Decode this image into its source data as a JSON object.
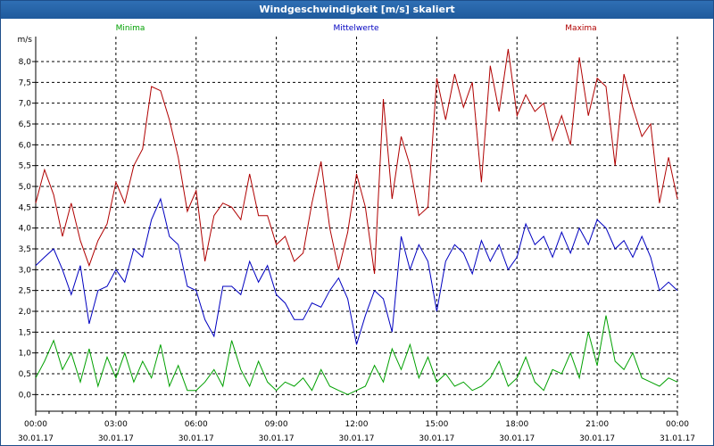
{
  "window": {
    "title": "Windgeschwindigkeit [m/s] skaliert"
  },
  "chart_data": {
    "type": "line",
    "title": "Windgeschwindigkeit [m/s] skaliert",
    "ylabel": "m/s",
    "xlabel": "",
    "ylim": [
      -0.4,
      8.6
    ],
    "xlim": [
      0,
      24
    ],
    "grid": true,
    "y_ticks": [
      "0,0",
      "0,5",
      "1,0",
      "1,5",
      "2,0",
      "2,5",
      "3,0",
      "3,5",
      "4,0",
      "4,5",
      "5,0",
      "5,5",
      "6,0",
      "6,5",
      "7,0",
      "7,5",
      "8,0"
    ],
    "x_ticks": [
      {
        "time": "00:00",
        "date": "30.01.17"
      },
      {
        "time": "03:00",
        "date": "30.01.17"
      },
      {
        "time": "06:00",
        "date": "30.01.17"
      },
      {
        "time": "09:00",
        "date": "30.01.17"
      },
      {
        "time": "12:00",
        "date": "30.01.17"
      },
      {
        "time": "15:00",
        "date": "30.01.17"
      },
      {
        "time": "18:00",
        "date": "30.01.17"
      },
      {
        "time": "21:00",
        "date": "30.01.17"
      },
      {
        "time": "00:00",
        "date": "31.01.17"
      }
    ],
    "legend": [
      "Minima",
      "Mittelwerte",
      "Maxima"
    ],
    "series": [
      {
        "name": "Minima",
        "color": "#00a000",
        "x": [
          0,
          0.33,
          0.67,
          1,
          1.33,
          1.67,
          2,
          2.33,
          2.67,
          3,
          3.33,
          3.67,
          4,
          4.33,
          4.67,
          5,
          5.33,
          5.67,
          6,
          6.33,
          6.67,
          7,
          7.33,
          7.67,
          8,
          8.33,
          8.67,
          9,
          9.33,
          9.67,
          10,
          10.33,
          10.67,
          11,
          11.33,
          11.67,
          12,
          12.33,
          12.67,
          13,
          13.33,
          13.67,
          14,
          14.33,
          14.67,
          15,
          15.33,
          15.67,
          16,
          16.33,
          16.67,
          17,
          17.33,
          17.67,
          18,
          18.33,
          18.67,
          19,
          19.33,
          19.67,
          20,
          20.33,
          20.67,
          21,
          21.33,
          21.67,
          22,
          22.33,
          22.67,
          23,
          23.33,
          23.67,
          24
        ],
        "y": [
          0.4,
          0.8,
          1.3,
          0.6,
          1.0,
          0.3,
          1.1,
          0.2,
          0.9,
          0.4,
          1.0,
          0.3,
          0.8,
          0.4,
          1.2,
          0.2,
          0.7,
          0.1,
          0.1,
          0.3,
          0.6,
          0.2,
          1.3,
          0.6,
          0.2,
          0.8,
          0.3,
          0.1,
          0.3,
          0.2,
          0.4,
          0.1,
          0.6,
          0.2,
          0.1,
          0.0,
          0.1,
          0.2,
          0.7,
          0.3,
          1.1,
          0.6,
          1.2,
          0.4,
          0.9,
          0.3,
          0.5,
          0.2,
          0.3,
          0.1,
          0.2,
          0.4,
          0.8,
          0.2,
          0.4,
          0.9,
          0.3,
          0.1,
          0.6,
          0.5,
          1.0,
          0.4,
          1.5,
          0.7,
          1.9,
          0.8,
          0.6,
          1.0,
          0.4,
          0.3,
          0.2,
          0.4,
          0.3
        ]
      },
      {
        "name": "Mittelwerte",
        "color": "#0000c0",
        "x": [
          0,
          0.33,
          0.67,
          1,
          1.33,
          1.67,
          2,
          2.33,
          2.67,
          3,
          3.33,
          3.67,
          4,
          4.33,
          4.67,
          5,
          5.33,
          5.67,
          6,
          6.33,
          6.67,
          7,
          7.33,
          7.67,
          8,
          8.33,
          8.67,
          9,
          9.33,
          9.67,
          10,
          10.33,
          10.67,
          11,
          11.33,
          11.67,
          12,
          12.33,
          12.67,
          13,
          13.33,
          13.67,
          14,
          14.33,
          14.67,
          15,
          15.33,
          15.67,
          16,
          16.33,
          16.67,
          17,
          17.33,
          17.67,
          18,
          18.33,
          18.67,
          19,
          19.33,
          19.67,
          20,
          20.33,
          20.67,
          21,
          21.33,
          21.67,
          22,
          22.33,
          22.67,
          23,
          23.33,
          23.67,
          24
        ],
        "y": [
          3.1,
          3.3,
          3.5,
          3.0,
          2.4,
          3.1,
          1.7,
          2.5,
          2.6,
          3.0,
          2.7,
          3.5,
          3.3,
          4.2,
          4.7,
          3.8,
          3.6,
          2.6,
          2.5,
          1.8,
          1.4,
          2.6,
          2.6,
          2.4,
          3.2,
          2.7,
          3.1,
          2.4,
          2.2,
          1.8,
          1.8,
          2.2,
          2.1,
          2.5,
          2.8,
          2.3,
          1.2,
          1.9,
          2.5,
          2.3,
          1.5,
          3.8,
          3.0,
          3.6,
          3.2,
          2.0,
          3.2,
          3.6,
          3.4,
          2.9,
          3.7,
          3.2,
          3.6,
          3.0,
          3.3,
          4.1,
          3.6,
          3.8,
          3.3,
          3.9,
          3.4,
          4.0,
          3.6,
          4.2,
          4.0,
          3.5,
          3.7,
          3.3,
          3.8,
          3.3,
          2.5,
          2.7,
          2.5
        ]
      },
      {
        "name": "Maxima",
        "color": "#b00000",
        "x": [
          0,
          0.33,
          0.67,
          1,
          1.33,
          1.67,
          2,
          2.33,
          2.67,
          3,
          3.33,
          3.67,
          4,
          4.33,
          4.67,
          5,
          5.33,
          5.67,
          6,
          6.33,
          6.67,
          7,
          7.33,
          7.67,
          8,
          8.33,
          8.67,
          9,
          9.33,
          9.67,
          10,
          10.33,
          10.67,
          11,
          11.33,
          11.67,
          12,
          12.33,
          12.67,
          13,
          13.33,
          13.67,
          14,
          14.33,
          14.67,
          15,
          15.33,
          15.67,
          16,
          16.33,
          16.67,
          17,
          17.33,
          17.67,
          18,
          18.33,
          18.67,
          19,
          19.33,
          19.67,
          20,
          20.33,
          20.67,
          21,
          21.33,
          21.67,
          22,
          22.33,
          22.67,
          23,
          23.33,
          23.67,
          24
        ],
        "y": [
          4.6,
          5.4,
          4.8,
          3.8,
          4.6,
          3.7,
          3.1,
          3.7,
          4.1,
          5.1,
          4.6,
          5.5,
          5.9,
          7.4,
          7.3,
          6.6,
          5.7,
          4.4,
          4.9,
          3.2,
          4.3,
          4.6,
          4.5,
          4.2,
          5.3,
          4.3,
          4.3,
          3.6,
          3.8,
          3.2,
          3.4,
          4.6,
          5.6,
          4.0,
          3.0,
          3.9,
          5.3,
          4.5,
          2.9,
          7.1,
          4.7,
          6.2,
          5.5,
          4.3,
          4.5,
          7.6,
          6.6,
          7.7,
          6.9,
          7.5,
          5.1,
          7.9,
          6.8,
          8.3,
          6.7,
          7.2,
          6.8,
          7.0,
          6.1,
          6.7,
          6.0,
          8.1,
          6.7,
          7.6,
          7.4,
          5.5,
          7.7,
          6.9,
          6.2,
          6.5,
          4.6,
          5.7,
          4.7
        ]
      }
    ]
  }
}
